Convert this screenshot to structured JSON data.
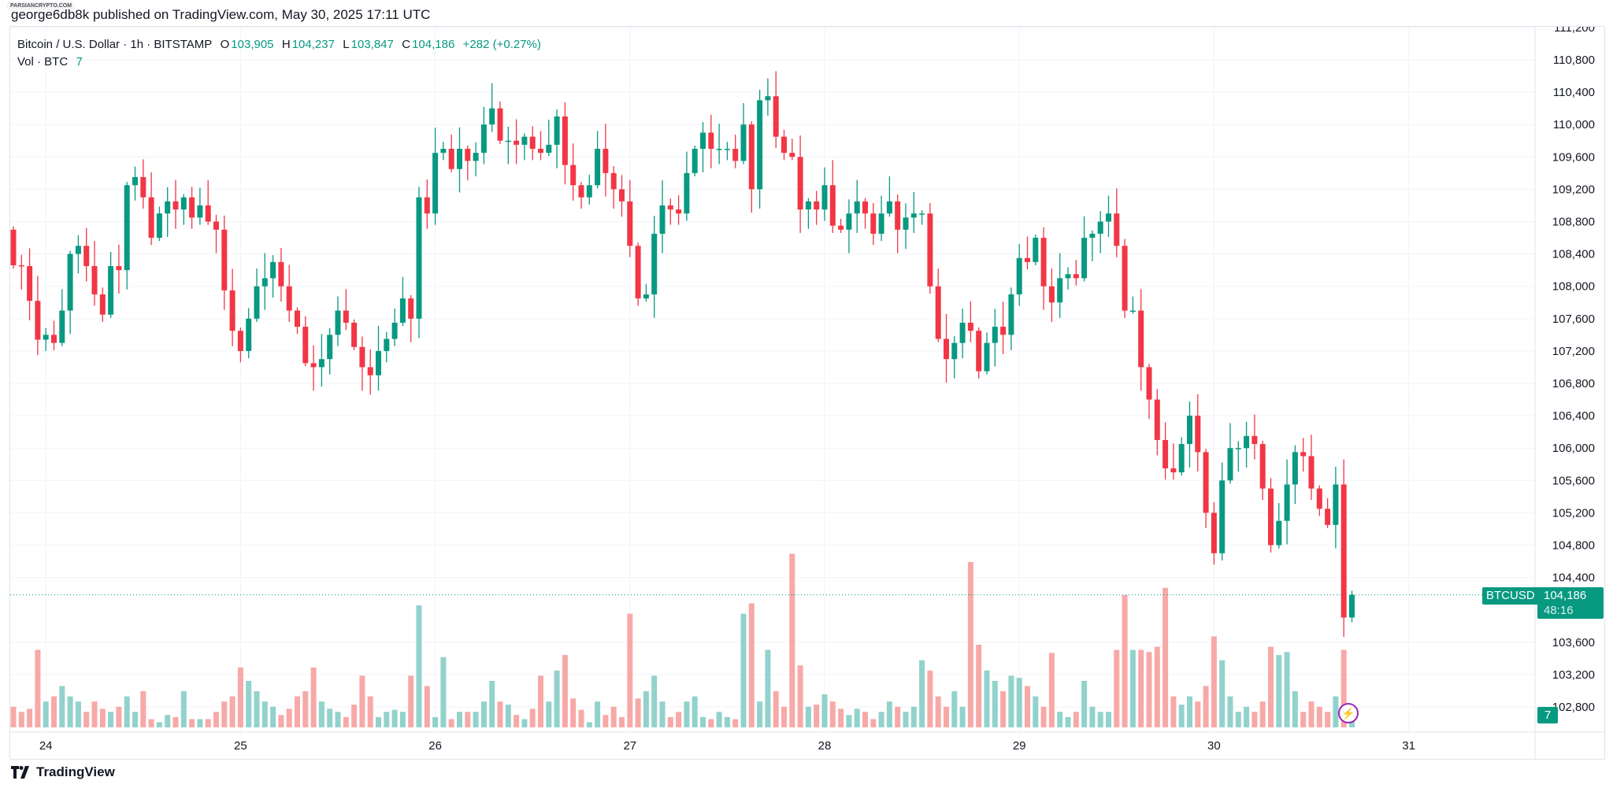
{
  "watermark": "PARSIANCRYPTO.COM",
  "published": "george6db8k published on TradingView.com, May 30, 2025 17:11 UTC",
  "legend": {
    "symbol": "Bitcoin / U.S. Dollar · 1h · BITSTAMP",
    "o_label": "O",
    "o": "103,905",
    "h_label": "H",
    "h": "104,237",
    "l_label": "L",
    "l": "103,847",
    "c_label": "C",
    "c": "104,186",
    "change": "+282 (+0.27%)",
    "vol_label": "Vol · BTC",
    "vol": "7"
  },
  "tags": {
    "symbol": "BTCUSD",
    "price": "104,186",
    "countdown": "48:16",
    "volume": "7"
  },
  "footer": {
    "brand": "TradingView"
  },
  "colors": {
    "up": "#089981",
    "down": "#F23645",
    "vol_up": "#92D2CC",
    "vol_down": "#F7A9A7",
    "grid": "#F0F3FA",
    "alert": "#9C27B0"
  },
  "icons": {
    "alert": "lightning-icon",
    "logo": "tradingview-logo-icon"
  },
  "chart_data": {
    "type": "candlestick",
    "timeframe": "1h",
    "symbol": "BTCUSD",
    "grid": true,
    "x_ticks": [
      "24",
      "25",
      "26",
      "27",
      "28",
      "29",
      "30",
      "31"
    ],
    "y_ticks": [
      "102,800",
      "103,200",
      "103,600",
      "104,400",
      "104,800",
      "105,200",
      "105,600",
      "106,000",
      "106,400",
      "106,800",
      "107,200",
      "107,600",
      "108,000",
      "108,400",
      "108,800",
      "109,200",
      "109,600",
      "110,000",
      "110,400",
      "110,800",
      "111,200"
    ],
    "ylim": [
      102500,
      111250
    ],
    "first_open": 108700,
    "last_candle": {
      "open": 103905,
      "high": 104237,
      "low": 103847,
      "close": 104186
    },
    "close": [
      108260,
      108250,
      107820,
      107340,
      107400,
      107300,
      107700,
      108400,
      108500,
      108250,
      107900,
      107650,
      108250,
      108200,
      109250,
      109350,
      109100,
      108600,
      108900,
      109050,
      108950,
      109100,
      108850,
      109000,
      108800,
      108700,
      107950,
      107450,
      107200,
      107600,
      108000,
      108100,
      108300,
      108000,
      107700,
      107500,
      107050,
      107000,
      107100,
      107400,
      107700,
      107550,
      107250,
      107000,
      106900,
      107200,
      107350,
      107550,
      107850,
      107600,
      109100,
      108900,
      109650,
      109700,
      109450,
      109700,
      109550,
      109650,
      110000,
      110200,
      109800,
      109800,
      109750,
      109850,
      109700,
      109650,
      109750,
      110100,
      109500,
      109250,
      109100,
      109250,
      109700,
      109400,
      109200,
      109050,
      108500,
      107850,
      107900,
      108650,
      109000,
      108950,
      108900,
      109400,
      109700,
      109900,
      109700,
      109700,
      109700,
      109550,
      110000,
      109200,
      110300,
      110350,
      109850,
      109650,
      109600,
      108950,
      109050,
      108950,
      109250,
      108750,
      108700,
      108900,
      109050,
      108900,
      108650,
      108900,
      109050,
      108700,
      108850,
      108900,
      108900,
      108000,
      107350,
      107100,
      107300,
      107550,
      107450,
      106950,
      107300,
      107500,
      107400,
      107900,
      108350,
      108300,
      108600,
      108000,
      107800,
      108100,
      108150,
      108100,
      108600,
      108650,
      108800,
      108900,
      108500,
      107700,
      107700,
      107000,
      106600,
      106100,
      105750,
      105700,
      106050,
      106400,
      105950,
      105200,
      104700,
      105600,
      106000,
      106000,
      106150,
      106050,
      105500,
      104800,
      105100,
      105550,
      105950,
      105900,
      105500,
      105250,
      105050,
      105550,
      103905,
      104186
    ],
    "volume_btc": [
      20,
      15,
      18,
      75,
      25,
      30,
      40,
      30,
      25,
      15,
      25,
      18,
      15,
      20,
      30,
      15,
      35,
      8,
      5,
      12,
      10,
      35,
      8,
      8,
      8,
      15,
      25,
      30,
      58,
      45,
      35,
      25,
      20,
      12,
      18,
      30,
      35,
      58,
      25,
      18,
      15,
      10,
      22,
      50,
      30,
      10,
      15,
      17,
      15,
      50,
      118,
      40,
      10,
      68,
      8,
      15,
      15,
      15,
      25,
      45,
      25,
      22,
      12,
      8,
      18,
      50,
      25,
      55,
      70,
      28,
      17,
      5,
      25,
      12,
      20,
      10,
      110,
      28,
      35,
      50,
      25,
      10,
      15,
      25,
      30,
      10,
      8,
      15,
      10,
      8,
      110,
      120,
      25,
      75,
      35,
      20,
      168,
      60,
      20,
      22,
      32,
      25,
      18,
      12,
      18,
      15,
      8,
      15,
      25,
      20,
      15,
      20,
      65,
      55,
      30,
      20,
      35,
      20,
      160,
      80,
      55,
      45,
      35,
      50,
      48,
      40,
      30,
      20,
      72,
      15,
      10,
      15,
      45,
      20,
      15,
      15,
      75,
      128,
      75,
      75,
      73,
      78,
      135,
      30,
      22,
      30,
      25,
      40,
      88,
      65,
      30,
      15,
      20,
      15,
      25,
      78,
      70,
      73,
      35,
      15,
      25,
      20,
      15,
      30,
      75,
      7
    ]
  }
}
